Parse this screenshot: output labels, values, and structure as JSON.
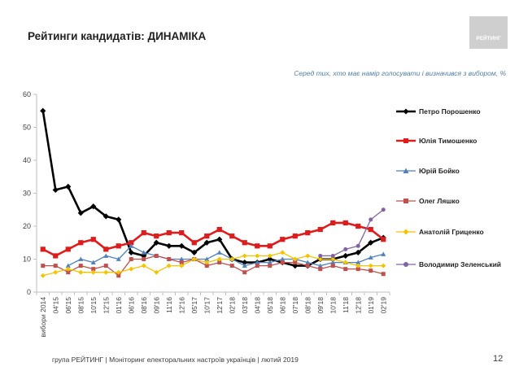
{
  "header": {
    "title": "Рейтинги кандидатів: ДИНАМІКА",
    "subtitle": "Серед тих, хто має намір голосувати і визначився з вибором, %",
    "logo_text": "РЕЙТИНГ"
  },
  "footer": {
    "text": "група РЕЙТИНГ | Моніторинг електоральних настроїв українців | лютий 2019",
    "page_number": "12"
  },
  "chart_data": {
    "type": "line",
    "ylim": [
      0,
      60
    ],
    "yticks": [
      "0",
      "10",
      "20",
      "30",
      "40",
      "50",
      "60"
    ],
    "grid": false,
    "legend_position": "right",
    "categories": [
      "вибори 2014",
      "04'15",
      "06'15",
      "08'15",
      "10'15",
      "12'15",
      "01'16",
      "06'16",
      "08'16",
      "09'16",
      "11'16",
      "12'16",
      "05'17",
      "10'17",
      "12'17",
      "02'18",
      "03'18",
      "04'18",
      "05'18",
      "06'18",
      "07'18",
      "08'18",
      "09'18",
      "10'18",
      "11'18",
      "12'18",
      "01'19",
      "02'19"
    ],
    "x_tick_labels": [
      "вибори 2014",
      "04'15",
      "06'15",
      "08'15",
      "10'15",
      "12'15",
      "01'16",
      "06'16",
      "08'16",
      "09'16",
      "11'16",
      "12'16",
      "05'17",
      "10'17",
      "12'17",
      "02'18",
      "03'18",
      "04'18",
      "05'18",
      "06'18",
      "07'18",
      "08'18",
      "09'18",
      "10'18",
      "11'18",
      "12'18",
      "01'19",
      "02'19"
    ],
    "series": [
      {
        "name": "Петро Порошенко",
        "color": "#000000",
        "marker": "diamond",
        "values": [
          55,
          31,
          32,
          24,
          26,
          23,
          22,
          12,
          11,
          15,
          14,
          14,
          12,
          15,
          16,
          10,
          9,
          9,
          10,
          9,
          8,
          8,
          10,
          10,
          11,
          12,
          15,
          16.5
        ]
      },
      {
        "name": "Юлія Тимошенко",
        "color": "#e01b1b",
        "marker": "square",
        "values": [
          13,
          11,
          13,
          15,
          16,
          13,
          14,
          15,
          18,
          17,
          18,
          18,
          15,
          17,
          19,
          17,
          15,
          14,
          14,
          16,
          17,
          18,
          19,
          21,
          21,
          20,
          19,
          16
        ]
      },
      {
        "name": "Юрій Бойко",
        "color": "#4f81bd",
        "marker": "triangle",
        "values": [
          null,
          null,
          8,
          10,
          9,
          11,
          10,
          14,
          12,
          11,
          10,
          10,
          10,
          10,
          12,
          10,
          8,
          9,
          9,
          10,
          10,
          9,
          8,
          9,
          9,
          9,
          10.5,
          11.5
        ]
      },
      {
        "name": "Олег Ляшко",
        "color": "#c0504d",
        "marker": "square",
        "values": [
          8,
          8,
          6,
          8,
          7,
          8,
          5,
          10,
          10,
          11,
          10,
          9,
          10,
          8,
          9,
          8,
          6,
          8,
          8,
          9,
          9,
          8,
          7,
          8,
          7,
          7,
          6.5,
          5.5
        ]
      },
      {
        "name": "Анатолій Гриценко",
        "color": "#f5c400",
        "marker": "diamond",
        "values": [
          5,
          6,
          7,
          6,
          6,
          6,
          6,
          7,
          8,
          6,
          8,
          8,
          10,
          9,
          10,
          10,
          11,
          11,
          11,
          12,
          10,
          11,
          10,
          10,
          9,
          8,
          8,
          8
        ]
      },
      {
        "name": "Володимир Зеленський",
        "color": "#8064a2",
        "marker": "circle",
        "values": [
          null,
          null,
          null,
          null,
          null,
          null,
          null,
          null,
          null,
          null,
          null,
          null,
          null,
          null,
          null,
          null,
          null,
          null,
          null,
          null,
          null,
          null,
          11,
          11,
          13,
          14,
          22,
          25
        ]
      }
    ]
  }
}
